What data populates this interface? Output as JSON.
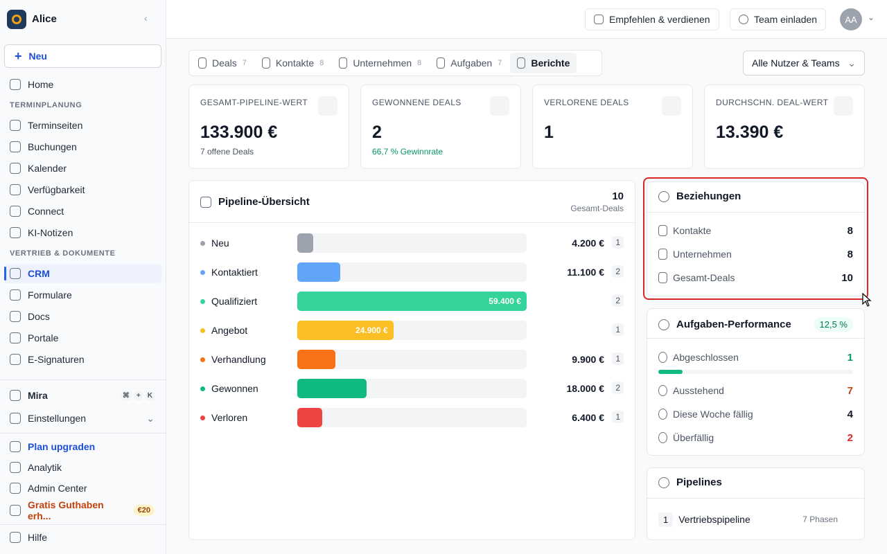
{
  "sidebar": {
    "workspace": "Alice",
    "new_button": "Neu",
    "top_items": [
      {
        "label": "Home"
      }
    ],
    "sections": [
      {
        "title": "TERMINPLANUNG",
        "items": [
          {
            "label": "Terminseiten"
          },
          {
            "label": "Buchungen"
          },
          {
            "label": "Kalender"
          },
          {
            "label": "Verfügbarkeit"
          },
          {
            "label": "Connect"
          },
          {
            "label": "KI-Notizen"
          }
        ]
      },
      {
        "title": "VERTRIEB & DOKUMENTE",
        "items": [
          {
            "label": "CRM",
            "active": true
          },
          {
            "label": "Formulare"
          },
          {
            "label": "Docs"
          },
          {
            "label": "Portale"
          },
          {
            "label": "E-Signaturen"
          }
        ]
      }
    ],
    "mira": {
      "label": "Mira",
      "shortcut": [
        "⌘",
        "+",
        "K"
      ]
    },
    "settings": "Einstellungen",
    "upgrade": "Plan upgraden",
    "analytics": "Analytik",
    "admin": "Admin Center",
    "credit": {
      "label": "Gratis Guthaben erh...",
      "badge": "€20"
    },
    "help": "Hilfe"
  },
  "header": {
    "refer": "Empfehlen & verdienen",
    "invite": "Team einladen",
    "avatar": "AA"
  },
  "tabs": [
    {
      "label": "Deals",
      "count": 7
    },
    {
      "label": "Kontakte",
      "count": 8
    },
    {
      "label": "Unternehmen",
      "count": 8
    },
    {
      "label": "Aufgaben",
      "count": 7
    },
    {
      "label": "Berichte",
      "active": true
    }
  ],
  "filter": "Alle Nutzer & Teams",
  "stats": [
    {
      "label": "GESAMT-PIPELINE-WERT",
      "value": "133.900 €",
      "sub": "7 offene Deals"
    },
    {
      "label": "GEWONNENE DEALS",
      "value": "2",
      "sub": "66,7 % Gewinnrate",
      "sub_color": "#059669"
    },
    {
      "label": "VERLORENE DEALS",
      "value": "1"
    },
    {
      "label": "DURCHSCHN. DEAL-WERT",
      "value": "13.390 €"
    }
  ],
  "pipeline": {
    "title": "Pipeline-Übersicht",
    "total": 10,
    "total_label": "Gesamt-Deals",
    "stages": [
      {
        "name": "Neu",
        "color": "#9ca3af",
        "value": 4200,
        "value_label": "4.200 €",
        "count": 1
      },
      {
        "name": "Kontaktiert",
        "color": "#60a5fa",
        "value": 11100,
        "value_label": "11.100 €",
        "count": 2
      },
      {
        "name": "Qualifiziert",
        "color": "#34d399",
        "value": 59400,
        "value_label": "59.400 €",
        "count": 2
      },
      {
        "name": "Angebot",
        "color": "#fbbf24",
        "value": 24900,
        "value_label": "24.900 €",
        "count": 1
      },
      {
        "name": "Verhandlung",
        "color": "#f97316",
        "value": 9900,
        "value_label": "9.900 €",
        "count": 1
      },
      {
        "name": "Gewonnen",
        "color": "#10b981",
        "value": 18000,
        "value_label": "18.000 €",
        "count": 2
      },
      {
        "name": "Verloren",
        "color": "#ef4444",
        "value": 6400,
        "value_label": "6.400 €",
        "count": 1
      }
    ]
  },
  "relations": {
    "title": "Beziehungen",
    "rows": [
      {
        "label": "Kontakte",
        "value": 8
      },
      {
        "label": "Unternehmen",
        "value": 8
      },
      {
        "label": "Gesamt-Deals",
        "value": 10
      }
    ]
  },
  "tasks": {
    "title": "Aufgaben-Performance",
    "rate": 12.5,
    "rate_label": "12,5 %",
    "rows": [
      {
        "label": "Abgeschlossen",
        "value": 1,
        "color": "#059669"
      },
      {
        "label": "Ausstehend",
        "value": 7,
        "color": "#c2410c"
      },
      {
        "label": "Diese Woche fällig",
        "value": 4,
        "color": "#111827"
      },
      {
        "label": "Überfällig",
        "value": 2,
        "color": "#dc2626"
      }
    ]
  },
  "pipelines": {
    "title": "Pipelines",
    "rows": [
      {
        "index": 1,
        "name": "Vertriebspipeline",
        "phases": "7 Phasen"
      }
    ]
  }
}
